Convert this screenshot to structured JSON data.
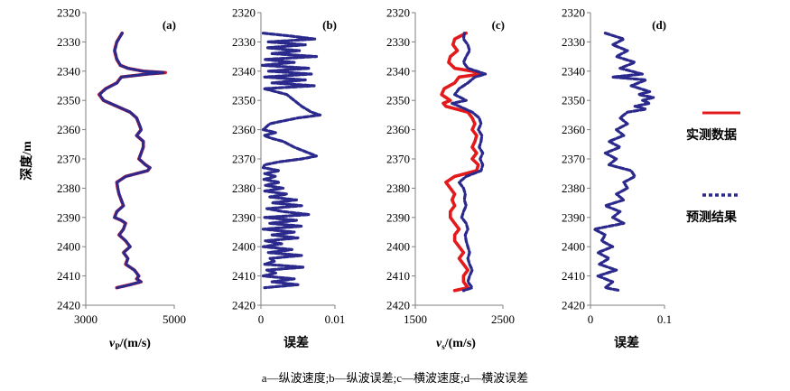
{
  "figure": {
    "ylabel": "深度/m",
    "caption": "a—纵波速度;b—纵波误差;c—横波速度;d—横波误差"
  },
  "colors": {
    "measured": "#e31a1c",
    "predicted": "#2b2a8c",
    "axis": "#7f7f7f"
  },
  "legend": {
    "measured": "实测数据",
    "predicted": "预测结果"
  },
  "chart_data": [
    {
      "type": "line",
      "panel": "(a)",
      "xlabel_main": "v",
      "xlabel_sub": "P",
      "xlabel_rest": "/(m/s)",
      "xlim": [
        3000,
        5000
      ],
      "xticks": [
        "3000",
        "5000"
      ],
      "ylim": [
        2420,
        2320
      ],
      "yticks": [
        "2320",
        "2330",
        "2340",
        "2350",
        "2360",
        "2370",
        "2380",
        "2390",
        "2400",
        "2410",
        "2420"
      ],
      "series": [
        {
          "name": "实测数据",
          "role": "measured",
          "y": [
            2327,
            2330,
            2333,
            2336,
            2338,
            2339,
            2340,
            2340.5,
            2341,
            2342,
            2344,
            2346,
            2348,
            2350,
            2352,
            2354,
            2356,
            2358,
            2360,
            2362,
            2364,
            2366,
            2368,
            2370,
            2372,
            2373,
            2374,
            2376,
            2378,
            2380,
            2382,
            2384,
            2386,
            2388,
            2390,
            2391,
            2392,
            2394,
            2396,
            2398,
            2400,
            2402,
            2404,
            2406,
            2408,
            2410,
            2411,
            2412,
            2413,
            2414
          ],
          "x": [
            3820,
            3700,
            3650,
            3700,
            3780,
            3950,
            4300,
            4800,
            4400,
            3800,
            3700,
            3450,
            3300,
            3400,
            3700,
            4000,
            4150,
            4200,
            4250,
            4150,
            4300,
            4300,
            4250,
            4200,
            4350,
            4450,
            4400,
            3900,
            3700,
            3720,
            3750,
            3800,
            3850,
            3700,
            3650,
            3800,
            3900,
            3850,
            3750,
            3900,
            4000,
            3850,
            3950,
            3900,
            4100,
            4200,
            4150,
            4250,
            4000,
            3700
          ]
        },
        {
          "name": "预测结果",
          "role": "predicted",
          "y": [
            2327,
            2330,
            2333,
            2336,
            2338,
            2339,
            2340,
            2340.5,
            2341,
            2342,
            2344,
            2346,
            2348,
            2350,
            2352,
            2354,
            2356,
            2358,
            2360,
            2362,
            2364,
            2366,
            2368,
            2370,
            2372,
            2373,
            2374,
            2376,
            2378,
            2380,
            2382,
            2384,
            2386,
            2388,
            2390,
            2391,
            2392,
            2394,
            2396,
            2398,
            2400,
            2402,
            2404,
            2406,
            2408,
            2410,
            2411,
            2412,
            2413,
            2414
          ],
          "x": [
            3825,
            3705,
            3655,
            3706,
            3785,
            3945,
            4290,
            4780,
            4395,
            3808,
            3706,
            3456,
            3310,
            3405,
            3706,
            4005,
            4150,
            4205,
            4255,
            4148,
            4305,
            4298,
            4252,
            4206,
            4346,
            4446,
            4395,
            3905,
            3706,
            3725,
            3754,
            3805,
            3853,
            3704,
            3655,
            3806,
            3896,
            3853,
            3755,
            3903,
            4004,
            3853,
            3955,
            3905,
            4095,
            4196,
            4153,
            4245,
            4005,
            3710
          ]
        }
      ]
    },
    {
      "type": "line",
      "panel": "(b)",
      "xlabel": "误差",
      "xlim": [
        0,
        0.01
      ],
      "xticks": [
        "0",
        "0.01"
      ],
      "ylim": [
        2420,
        2320
      ],
      "yticks": [
        "2320",
        "2330",
        "2340",
        "2350",
        "2360",
        "2370",
        "2380",
        "2390",
        "2400",
        "2410",
        "2420"
      ],
      "series": [
        {
          "name": "预测结果",
          "role": "predicted",
          "y": [
            2327,
            2328,
            2329,
            2330,
            2331,
            2332,
            2333,
            2334,
            2335,
            2336,
            2337,
            2338,
            2339,
            2340,
            2341,
            2342,
            2343,
            2344,
            2345,
            2346,
            2347,
            2348,
            2350,
            2352,
            2354,
            2355,
            2356,
            2357,
            2358,
            2360,
            2361,
            2362,
            2363,
            2364,
            2366,
            2367,
            2368,
            2369,
            2370,
            2371,
            2372,
            2373,
            2374,
            2375,
            2376,
            2377,
            2378,
            2379,
            2380,
            2381,
            2382,
            2383,
            2384,
            2385,
            2386,
            2387,
            2388,
            2389,
            2390,
            2391,
            2392,
            2393,
            2394,
            2395,
            2396,
            2397,
            2398,
            2399,
            2400,
            2401,
            2402,
            2403,
            2404,
            2405,
            2406,
            2407,
            2408,
            2409,
            2410,
            2411,
            2412,
            2413,
            2414
          ],
          "x": [
            0.0003,
            0.004,
            0.0073,
            0.001,
            0.006,
            0.0008,
            0.0052,
            0.0015,
            0.0075,
            0.0005,
            0.0045,
            0.0002,
            0.0065,
            0.001,
            0.0068,
            0.0005,
            0.006,
            0.0015,
            0.0072,
            0.0004,
            0.002,
            0.0035,
            0.0045,
            0.0055,
            0.0068,
            0.008,
            0.005,
            0.003,
            0.0012,
            0.0003,
            0.002,
            0.0004,
            0.0015,
            0.003,
            0.0045,
            0.0055,
            0.0065,
            0.0075,
            0.0055,
            0.0025,
            0.0005,
            0.0003,
            0.0025,
            0.0005,
            0.002,
            0.0004,
            0.0025,
            0.0006,
            0.003,
            0.0005,
            0.0035,
            0.0012,
            0.0048,
            0.0015,
            0.0055,
            0.0008,
            0.003,
            0.0065,
            0.0005,
            0.0048,
            0.0012,
            0.0055,
            0.0003,
            0.0045,
            0.0015,
            0.005,
            0.0006,
            0.0028,
            0.0003,
            0.0042,
            0.001,
            0.0055,
            0.0012,
            0.0018,
            0.0005,
            0.0058,
            0.0008,
            0.002,
            0.0003,
            0.0045,
            0.0015,
            0.005,
            0.0005
          ]
        }
      ]
    },
    {
      "type": "line",
      "panel": "(c)",
      "xlabel_main": "v",
      "xlabel_sub": "s",
      "xlabel_rest": "/(m/s)",
      "xlim": [
        1500,
        2500
      ],
      "xticks": [
        "1500",
        "2500"
      ],
      "ylim": [
        2420,
        2320
      ],
      "yticks": [
        "2320",
        "2330",
        "2340",
        "2350",
        "2360",
        "2370",
        "2380",
        "2390",
        "2400",
        "2410",
        "2420"
      ],
      "series": [
        {
          "name": "实测数据",
          "role": "measured",
          "y": [
            2327,
            2329,
            2331,
            2333,
            2335,
            2337,
            2339,
            2340,
            2341,
            2342,
            2344,
            2346,
            2348,
            2350,
            2351,
            2352,
            2354,
            2356,
            2358,
            2360,
            2362,
            2364,
            2366,
            2368,
            2370,
            2372,
            2374,
            2376,
            2378,
            2380,
            2382,
            2384,
            2386,
            2388,
            2390,
            2392,
            2394,
            2396,
            2398,
            2400,
            2402,
            2404,
            2406,
            2408,
            2410,
            2412,
            2414,
            2415
          ],
          "x": [
            2080,
            1950,
            1930,
            1980,
            1900,
            1880,
            1950,
            2150,
            2250,
            2000,
            1950,
            1830,
            1800,
            1900,
            1820,
            1850,
            2100,
            2150,
            2180,
            2150,
            2200,
            2180,
            2150,
            2200,
            2150,
            2220,
            2200,
            1950,
            1850,
            1900,
            1950,
            1920,
            1950,
            1900,
            1900,
            1950,
            2000,
            1950,
            1950,
            2000,
            2050,
            2000,
            2050,
            2100,
            2050,
            2050,
            2100,
            1950
          ]
        },
        {
          "name": "预测结果",
          "role": "predicted",
          "y": [
            2327,
            2329,
            2331,
            2333,
            2335,
            2337,
            2339,
            2340,
            2341,
            2342,
            2344,
            2346,
            2348,
            2350,
            2351,
            2352,
            2354,
            2356,
            2358,
            2360,
            2362,
            2364,
            2366,
            2368,
            2370,
            2372,
            2374,
            2376,
            2378,
            2380,
            2382,
            2384,
            2386,
            2388,
            2390,
            2392,
            2394,
            2396,
            2398,
            2400,
            2402,
            2404,
            2406,
            2408,
            2410,
            2412,
            2414,
            2415
          ],
          "x": [
            2060,
            2050,
            2100,
            2120,
            2080,
            2050,
            2100,
            2200,
            2300,
            2180,
            2100,
            2000,
            1950,
            2080,
            1920,
            2000,
            2150,
            2230,
            2250,
            2220,
            2260,
            2250,
            2230,
            2270,
            2240,
            2270,
            2250,
            2080,
            2000,
            2050,
            2070,
            2060,
            2080,
            2050,
            2030,
            2080,
            2100,
            2070,
            2080,
            2100,
            2120,
            2100,
            2120,
            2150,
            2120,
            2100,
            2150,
            2050
          ]
        }
      ]
    },
    {
      "type": "line",
      "panel": "(d)",
      "xlabel": "误差",
      "xlim": [
        0,
        0.1
      ],
      "xticks": [
        "0",
        "0.1"
      ],
      "ylim": [
        2420,
        2320
      ],
      "yticks": [
        "2320",
        "2330",
        "2340",
        "2350",
        "2360",
        "2370",
        "2380",
        "2390",
        "2400",
        "2410",
        "2420"
      ],
      "series": [
        {
          "name": "预测结果",
          "role": "predicted",
          "y": [
            2327,
            2329,
            2331,
            2333,
            2335,
            2337,
            2339,
            2341,
            2342,
            2343,
            2345,
            2347,
            2348,
            2349,
            2350,
            2351,
            2352,
            2353,
            2354,
            2356,
            2358,
            2360,
            2362,
            2364,
            2366,
            2368,
            2370,
            2372,
            2374,
            2376,
            2378,
            2380,
            2382,
            2384,
            2386,
            2388,
            2390,
            2392,
            2394,
            2396,
            2398,
            2400,
            2402,
            2404,
            2406,
            2408,
            2410,
            2412,
            2414,
            2415
          ],
          "x": [
            0.02,
            0.045,
            0.03,
            0.05,
            0.035,
            0.06,
            0.04,
            0.07,
            0.03,
            0.075,
            0.055,
            0.08,
            0.065,
            0.085,
            0.07,
            0.08,
            0.06,
            0.075,
            0.05,
            0.04,
            0.05,
            0.035,
            0.045,
            0.025,
            0.04,
            0.02,
            0.035,
            0.025,
            0.055,
            0.06,
            0.045,
            0.05,
            0.035,
            0.045,
            0.02,
            0.04,
            0.03,
            0.045,
            0.005,
            0.02,
            0.015,
            0.03,
            0.01,
            0.025,
            0.012,
            0.035,
            0.01,
            0.03,
            0.02,
            0.04
          ]
        }
      ]
    }
  ]
}
